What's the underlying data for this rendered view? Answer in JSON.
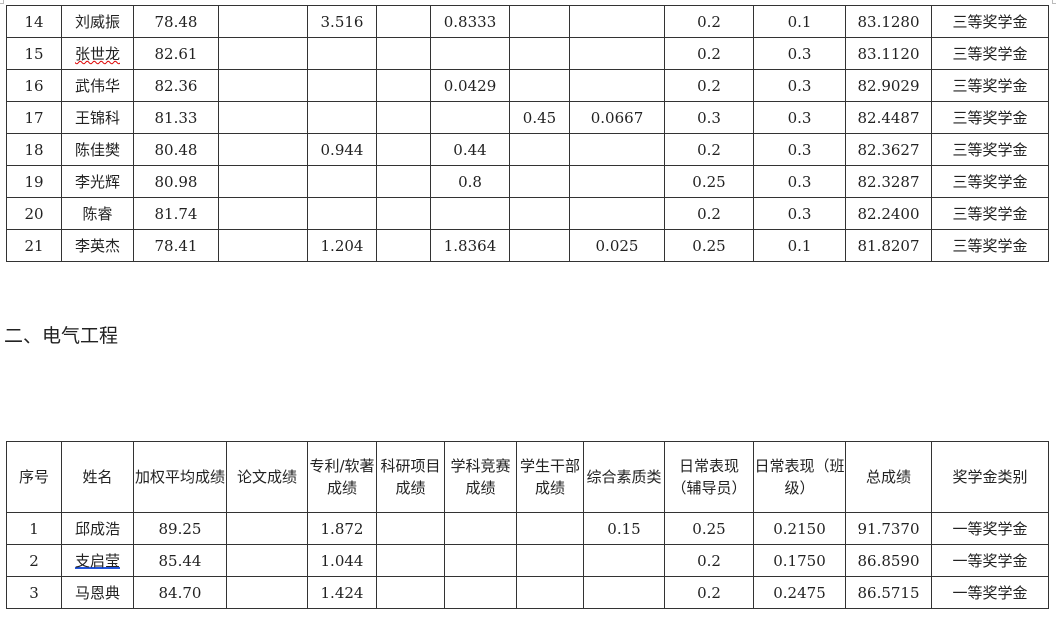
{
  "table1": {
    "rows": [
      [
        "14",
        "刘威振",
        "78.48",
        "",
        "3.516",
        "",
        "0.8333",
        "",
        "",
        "0.2",
        "0.1",
        "83.1280",
        "三等奖学金"
      ],
      [
        "15",
        "张世龙",
        "82.61",
        "",
        "",
        "",
        "",
        "",
        "",
        "0.2",
        "0.3",
        "83.1120",
        "三等奖学金"
      ],
      [
        "16",
        "武伟华",
        "82.36",
        "",
        "",
        "",
        "0.0429",
        "",
        "",
        "0.2",
        "0.3",
        "82.9029",
        "三等奖学金"
      ],
      [
        "17",
        "王锦科",
        "81.33",
        "",
        "",
        "",
        "",
        "0.45",
        "0.0667",
        "0.3",
        "0.3",
        "82.4487",
        "三等奖学金"
      ],
      [
        "18",
        "陈佳樊",
        "80.48",
        "",
        "0.944",
        "",
        "0.44",
        "",
        "",
        "0.2",
        "0.3",
        "82.3627",
        "三等奖学金"
      ],
      [
        "19",
        "李光辉",
        "80.98",
        "",
        "",
        "",
        "0.8",
        "",
        "",
        "0.25",
        "0.3",
        "82.3287",
        "三等奖学金"
      ],
      [
        "20",
        "陈睿",
        "81.74",
        "",
        "",
        "",
        "",
        "",
        "",
        "0.2",
        "0.3",
        "82.2400",
        "三等奖学金"
      ],
      [
        "21",
        "李英杰",
        "78.41",
        "",
        "1.204",
        "",
        "1.8364",
        "",
        "0.025",
        "0.25",
        "0.1",
        "81.8207",
        "三等奖学金"
      ]
    ]
  },
  "section_heading": "二、电气工程",
  "table2": {
    "headers": [
      "序号",
      "姓名",
      "加权平均成绩",
      "论文成绩",
      "专利/软著成绩",
      "科研项目成绩",
      "学科竞赛成绩",
      "学生干部成绩",
      "综合素质类",
      "日常表现（辅导员）",
      "日常表现（班级）",
      "总成绩",
      "奖学金类别"
    ],
    "rows": [
      [
        "1",
        "邱成浩",
        "89.25",
        "",
        "1.872",
        "",
        "",
        "",
        "0.15",
        "0.25",
        "0.2150",
        "91.7370",
        "一等奖学金"
      ],
      [
        "2",
        "支启莹",
        "85.44",
        "",
        "1.044",
        "",
        "",
        "",
        "",
        "0.2",
        "0.1750",
        "86.8590",
        "一等奖学金"
      ],
      [
        "3",
        "马恩典",
        "84.70",
        "",
        "1.424",
        "",
        "",
        "",
        "",
        "0.2",
        "0.2475",
        "86.5715",
        "一等奖学金"
      ]
    ]
  }
}
